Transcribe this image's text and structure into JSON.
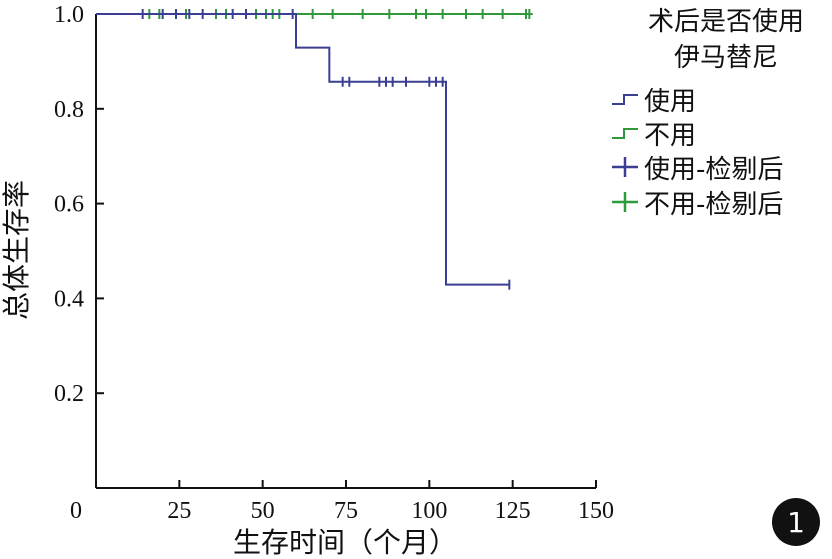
{
  "chart_data": {
    "type": "line",
    "subtype": "kaplan-meier step",
    "xlabel": "生存时间（个月）",
    "ylabel": "总体生存率",
    "xlim": [
      0,
      150
    ],
    "ylim": [
      0,
      1.0
    ],
    "xticks": [
      "0",
      "25",
      "50",
      "75",
      "100",
      "125",
      "150"
    ],
    "yticks": [
      "0.2",
      "0.4",
      "0.6",
      "0.8",
      "1.0"
    ],
    "grid": false,
    "legend": {
      "title_line1": "术后是否使用",
      "title_line2": "伊马替尼",
      "position": "top-right",
      "entries": [
        {
          "label": "使用",
          "kind": "step",
          "color": "#3b3f93"
        },
        {
          "label": "不用",
          "kind": "step",
          "color": "#2f9a3c"
        },
        {
          "label": "使用-检剔后",
          "kind": "censor",
          "color": "#3b3f93"
        },
        {
          "label": "不用-检剔后",
          "kind": "censor",
          "color": "#2f9a3c"
        }
      ]
    },
    "series": [
      {
        "name": "使用",
        "color": "#3b3f93",
        "steps": [
          [
            0,
            1.0
          ],
          [
            60,
            0.929
          ],
          [
            70,
            0.857
          ],
          [
            105,
            0.429
          ],
          [
            124,
            0.429
          ]
        ],
        "censored": [
          [
            14,
            1.0
          ],
          [
            20,
            1.0
          ],
          [
            24,
            1.0
          ],
          [
            28,
            1.0
          ],
          [
            32,
            1.0
          ],
          [
            41,
            1.0
          ],
          [
            45,
            1.0
          ],
          [
            59,
            1.0
          ],
          [
            74,
            0.857
          ],
          [
            76,
            0.857
          ],
          [
            85,
            0.857
          ],
          [
            87,
            0.857
          ],
          [
            89,
            0.857
          ],
          [
            93,
            0.857
          ],
          [
            100,
            0.857
          ],
          [
            102,
            0.857
          ],
          [
            104,
            0.857
          ],
          [
            124,
            0.429
          ]
        ]
      },
      {
        "name": "不用",
        "color": "#2f9a3c",
        "steps": [
          [
            0,
            1.0
          ],
          [
            131,
            1.0
          ]
        ],
        "censored": [
          [
            16,
            1.0
          ],
          [
            19,
            1.0
          ],
          [
            27,
            1.0
          ],
          [
            36,
            1.0
          ],
          [
            39,
            1.0
          ],
          [
            48,
            1.0
          ],
          [
            51,
            1.0
          ],
          [
            53,
            1.0
          ],
          [
            55,
            1.0
          ],
          [
            65,
            1.0
          ],
          [
            71,
            1.0
          ],
          [
            80,
            1.0
          ],
          [
            88,
            1.0
          ],
          [
            96,
            1.0
          ],
          [
            99,
            1.0
          ],
          [
            104,
            1.0
          ],
          [
            111,
            1.0
          ],
          [
            116,
            1.0
          ],
          [
            122,
            1.0
          ],
          [
            129,
            1.0
          ],
          [
            130,
            1.0
          ]
        ]
      }
    ]
  },
  "badge": {
    "label": "1"
  }
}
